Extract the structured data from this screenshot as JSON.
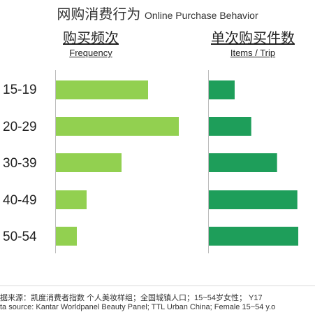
{
  "title": {
    "zh": "网购消费行为",
    "en": "Online Purchase Behavior"
  },
  "chart_data": [
    {
      "type": "bar",
      "orientation": "horizontal",
      "title_zh": "购买频次",
      "title_en": "Frequency",
      "categories": [
        "15-19",
        "20-29",
        "30-39",
        "40-49",
        "50-54"
      ],
      "values": [
        66,
        88,
        47,
        22,
        15
      ],
      "color": "#92d050"
    },
    {
      "type": "bar",
      "orientation": "horizontal",
      "title_zh": "单次购买件数",
      "title_en": "Items / Trip",
      "categories": [
        "15-19",
        "20-29",
        "30-39",
        "40-49",
        "50-54"
      ],
      "values": [
        28,
        46,
        74,
        96,
        97
      ],
      "color": "#1e9e5a"
    }
  ],
  "footnotes": [
    "据来源：凯度消费者指数 个人美妆样组；全国城镇人口；15~54岁女性； Y17",
    "ta source: Kantar Worldpanel Beauty Panel; TTL Urban China; Female 15~54 y.o"
  ]
}
